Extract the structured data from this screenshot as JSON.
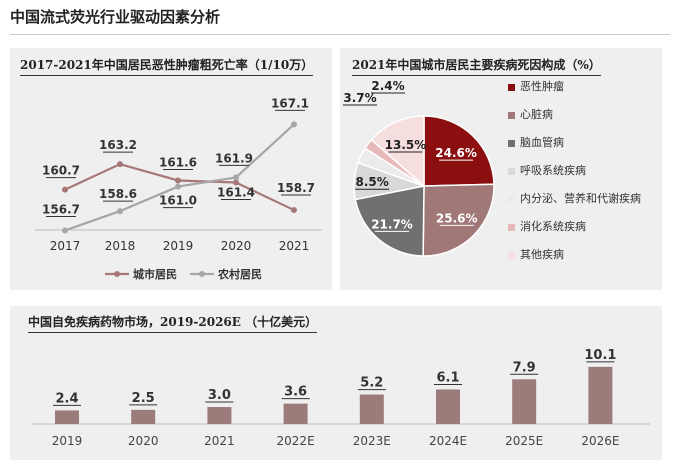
{
  "page": {
    "title": "中国流式荧光行业驱动因素分析"
  },
  "chart_data": [
    {
      "type": "line",
      "title": "2017-2021年中国居民恶性肿瘤粗死亡率（1/10万）",
      "categories": [
        "2017",
        "2018",
        "2019",
        "2020",
        "2021"
      ],
      "series": [
        {
          "name": "城市居民",
          "color": "#a87878",
          "values": [
            160.7,
            163.2,
            161.6,
            161.4,
            158.7
          ]
        },
        {
          "name": "农村居民",
          "color": "#a6a6a6",
          "values": [
            156.7,
            158.6,
            161.0,
            161.9,
            167.1
          ]
        }
      ],
      "legend_position": "bottom",
      "grid": false
    },
    {
      "type": "pie",
      "title": "2021年中国城市居民主要疾病死因构成（%）",
      "slices": [
        {
          "label": "恶性肿瘤",
          "value": 24.6,
          "color": "#8b0f0f",
          "label_color": "#ffffff"
        },
        {
          "label": "心脏病",
          "value": 25.6,
          "color": "#a07878",
          "label_color": "#ffffff"
        },
        {
          "label": "脑血管病",
          "value": 21.7,
          "color": "#707070",
          "label_color": "#ffffff"
        },
        {
          "label": "呼吸系统疾病",
          "value": 8.5,
          "color": "#d9d9d9",
          "label_color": "#222222"
        },
        {
          "label": "内分泌、营养和代谢疾病",
          "value": 3.7,
          "color": "#ebebeb",
          "label_color": "#222222"
        },
        {
          "label": "消化系统疾病",
          "value": 2.4,
          "color": "#e8b9b9",
          "label_color": "#222222"
        },
        {
          "label": "其他疾病",
          "value": 13.5,
          "color": "#f7dede",
          "label_color": "#222222"
        }
      ],
      "legend_position": "right"
    },
    {
      "type": "bar",
      "title": "中国自免疾病药物市场，2019-2026E （十亿美元）",
      "categories": [
        "2019",
        "2020",
        "2021",
        "2022E",
        "2023E",
        "2024E",
        "2025E",
        "2026E"
      ],
      "values": [
        2.4,
        2.5,
        3.0,
        3.6,
        5.2,
        6.1,
        7.9,
        10.1
      ],
      "color": "#9c7b7b",
      "ylim": [
        0,
        11
      ]
    }
  ]
}
